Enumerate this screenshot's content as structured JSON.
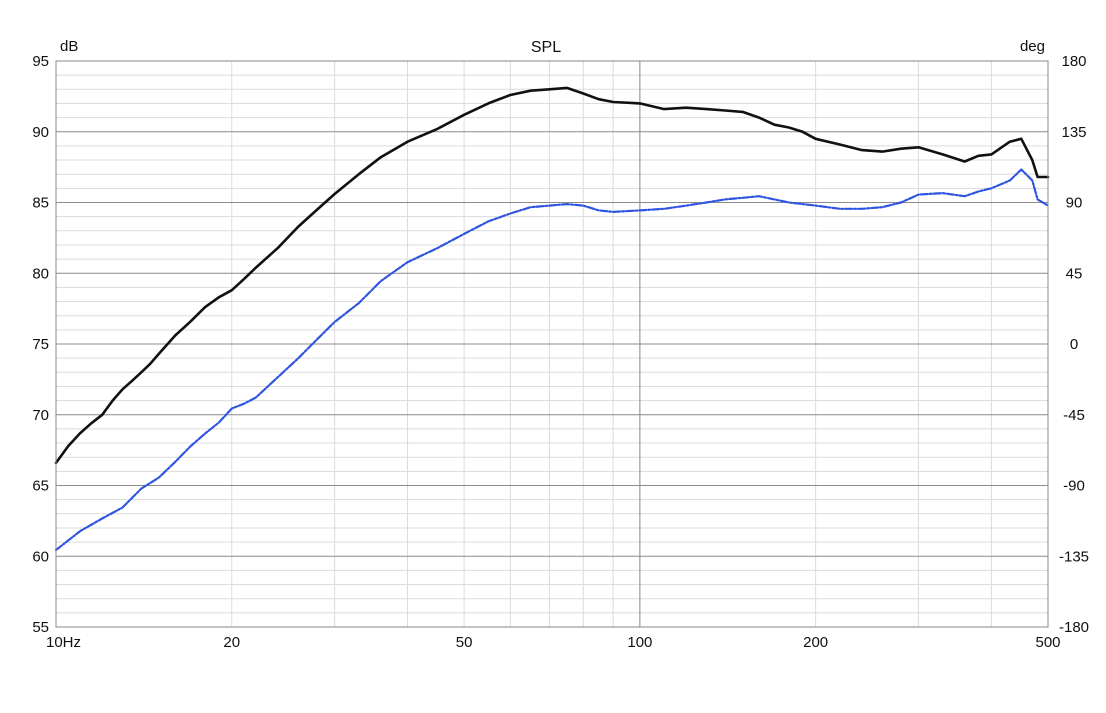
{
  "chart_data": {
    "type": "line",
    "title": "SPL",
    "x_scale": "log",
    "xlim": [
      10,
      500
    ],
    "ylim": [
      55,
      95
    ],
    "y2lim": [
      -180,
      180
    ],
    "y_unit": "dB",
    "y2_unit": "deg",
    "x_ticks": [
      "10Hz",
      "20",
      "50",
      "100",
      "200",
      "500"
    ],
    "x_tick_values": [
      10,
      20,
      50,
      100,
      200,
      500
    ],
    "y_ticks": [
      "95",
      "90",
      "85",
      "80",
      "75",
      "70",
      "65",
      "60",
      "55"
    ],
    "y_tick_values": [
      95,
      90,
      85,
      80,
      75,
      70,
      65,
      60,
      55
    ],
    "y2_ticks": [
      "180",
      "135",
      "90",
      "45",
      "0",
      "-45",
      "-90",
      "-135",
      "-180"
    ],
    "y2_tick_values": [
      180,
      135,
      90,
      45,
      0,
      -45,
      -90,
      -135,
      -180
    ],
    "grid": true,
    "series": [
      {
        "color": "#111111",
        "style": "solid",
        "x": [
          10,
          10.5,
          11,
          11.5,
          12,
          12.5,
          13,
          13.5,
          14,
          14.5,
          15,
          16,
          17,
          18,
          19,
          20,
          21,
          22,
          24,
          26,
          28,
          30,
          33,
          36,
          40,
          45,
          50,
          55,
          60,
          65,
          70,
          75,
          80,
          85,
          90,
          100,
          110,
          120,
          130,
          140,
          150,
          160,
          170,
          180,
          190,
          200,
          220,
          240,
          260,
          280,
          300,
          330,
          360,
          380,
          400,
          430,
          450,
          470,
          480,
          500
        ],
        "y": [
          66.6,
          67.8,
          68.7,
          69.4,
          70.0,
          71.0,
          71.8,
          72.4,
          73.0,
          73.6,
          74.3,
          75.6,
          76.6,
          77.6,
          78.3,
          78.8,
          79.6,
          80.4,
          81.8,
          83.3,
          84.5,
          85.6,
          87.0,
          88.2,
          89.3,
          90.2,
          91.2,
          92.0,
          92.6,
          92.9,
          93.0,
          93.1,
          92.7,
          92.3,
          92.1,
          92.0,
          91.6,
          91.7,
          91.6,
          91.5,
          91.4,
          91.0,
          90.5,
          90.3,
          90.0,
          89.5,
          89.1,
          88.7,
          88.6,
          88.8,
          88.9,
          88.4,
          87.9,
          88.3,
          88.4,
          89.3,
          89.5,
          88.0,
          86.8,
          86.8
        ]
      },
      {
        "color": "#2f55e0",
        "style": "dashed",
        "x": [
          10,
          11,
          12,
          13,
          14,
          15,
          16,
          17,
          18,
          19,
          20,
          21,
          22,
          24,
          26,
          28,
          30,
          33,
          36,
          40,
          45,
          50,
          55,
          60,
          65,
          70,
          75,
          80,
          85,
          90,
          100,
          110,
          120,
          130,
          140,
          150,
          160,
          170,
          180,
          200,
          220,
          240,
          260,
          280,
          300,
          330,
          360,
          380,
          400,
          430,
          450,
          470,
          480,
          500
        ],
        "y": [
          -131,
          -119,
          -111,
          -104,
          -92,
          -85,
          -75,
          -65,
          -57,
          -50,
          -41,
          -38,
          -34,
          -21,
          -9,
          3,
          14,
          26,
          40,
          52,
          61,
          70,
          78,
          83,
          87,
          88,
          89,
          88,
          85,
          84,
          85,
          86,
          88,
          90,
          92,
          93,
          94,
          92,
          90,
          88,
          86,
          86,
          87,
          90,
          95,
          96,
          94,
          97,
          99,
          104,
          111,
          104,
          92,
          88
        ]
      }
    ]
  }
}
